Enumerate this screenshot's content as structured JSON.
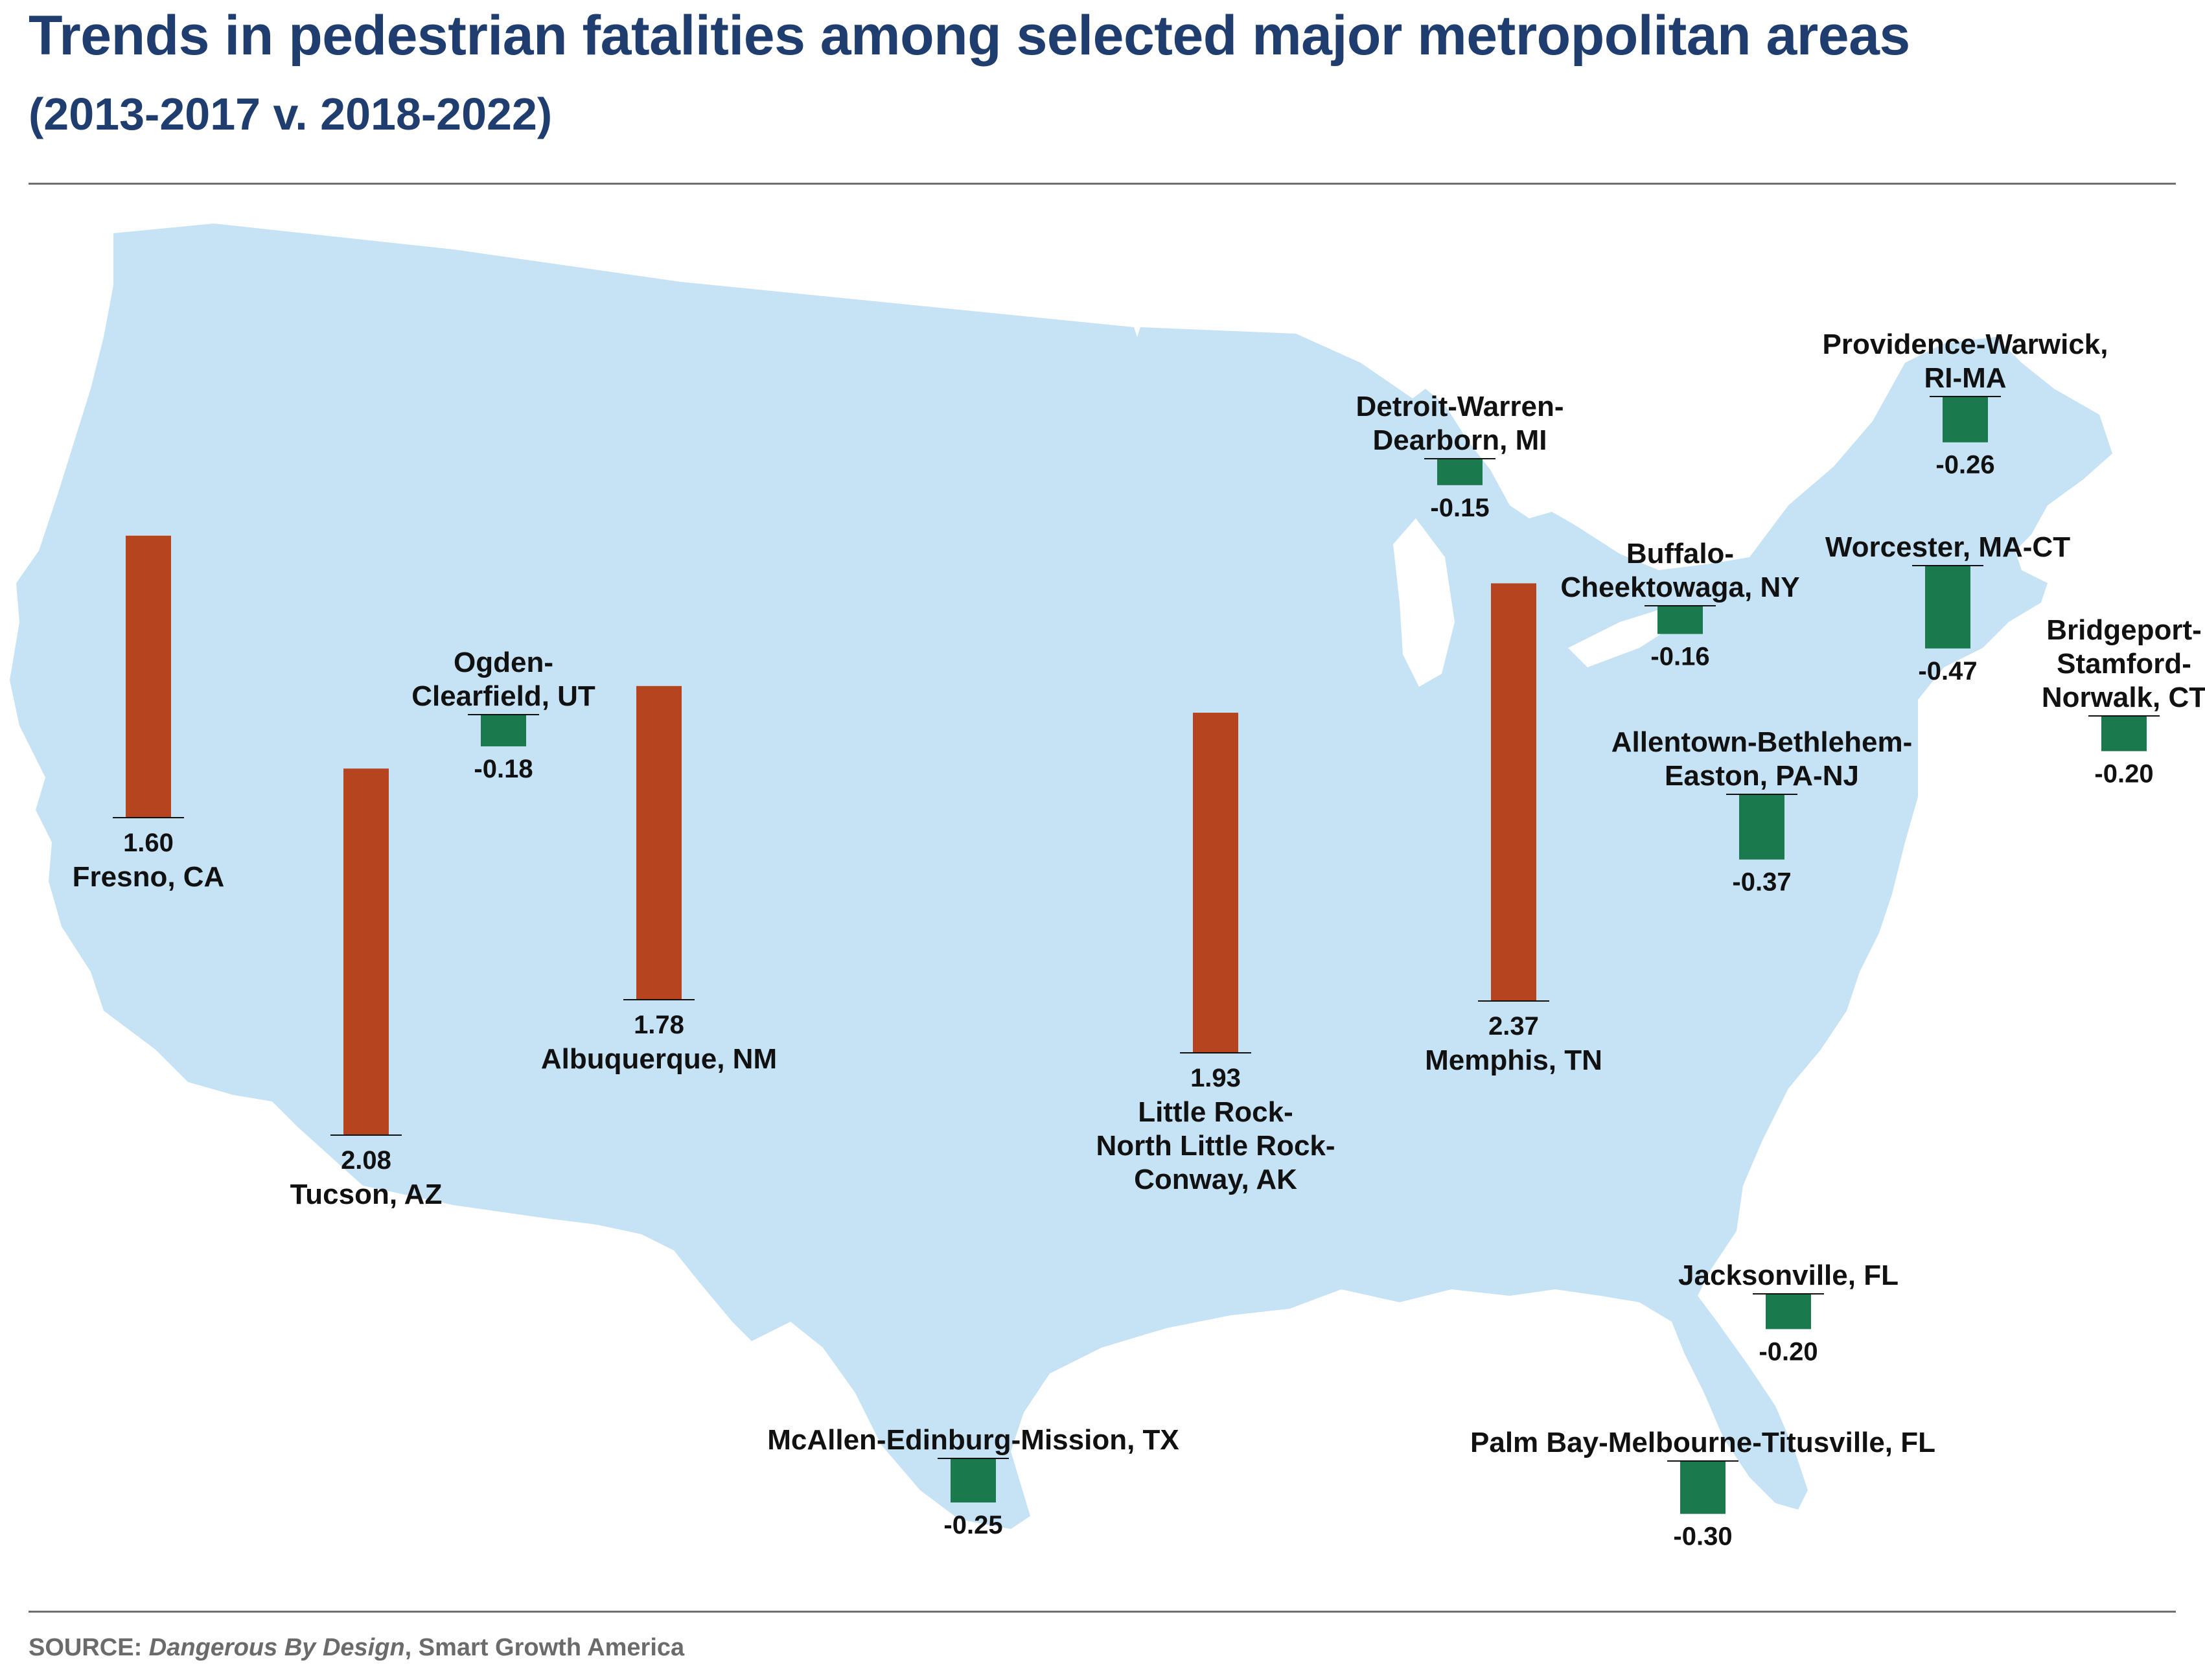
{
  "title": "Trends in pedestrian fatalities among selected major metropolitan areas",
  "subtitle": "(2013-2017 v. 2018-2022)",
  "source": {
    "label": "SOURCE:",
    "work": "Dangerous By Design",
    "org": ", Smart Growth America"
  },
  "colors": {
    "increase": "#b5441f",
    "decrease": "#1b7a4d",
    "map_fill": "#c6e2f5",
    "title": "#1f3d6e",
    "baseline": "#111111"
  },
  "chart_data": {
    "type": "bar",
    "layout": "map-positioned bars",
    "title": "Trends in pedestrian fatalities among selected major metropolitan areas",
    "subtitle": "(2013-2017 v. 2018-2022)",
    "xlabel": "",
    "ylabel": "",
    "grid": false,
    "legend": "none",
    "categories": [
      "Fresno, CA",
      "Tucson, AZ",
      "Ogden-Clearfield, UT",
      "Albuquerque, NM",
      "Little Rock-North Little Rock-Conway, AK",
      "Memphis, TN",
      "Detroit-Warren-Dearborn, MI",
      "Buffalo-Cheektowaga, NY",
      "Allentown-Bethlehem-Easton, PA-NJ",
      "Providence-Warwick, RI-MA",
      "Worcester, MA-CT",
      "Bridgeport-Stamford-Norwalk, CT",
      "Jacksonville, FL",
      "Palm Bay-Melbourne-Titusville, FL",
      "McAllen-Edinburg-Mission, TX"
    ],
    "values": [
      1.6,
      2.08,
      -0.18,
      1.78,
      1.93,
      2.37,
      -0.15,
      -0.16,
      -0.37,
      -0.26,
      -0.47,
      -0.2,
      -0.2,
      -0.3,
      -0.25
    ],
    "items": [
      {
        "name_lines": [
          "Fresno, CA"
        ],
        "value": 1.6,
        "value_label": "1.60"
      },
      {
        "name_lines": [
          "Tucson, AZ"
        ],
        "value": 2.08,
        "value_label": "2.08"
      },
      {
        "name_lines": [
          "Ogden-",
          "Clearfield, UT"
        ],
        "value": -0.18,
        "value_label": "-0.18"
      },
      {
        "name_lines": [
          "Albuquerque, NM"
        ],
        "value": 1.78,
        "value_label": "1.78"
      },
      {
        "name_lines": [
          "Little Rock-",
          "North Little Rock-",
          "Conway, AK"
        ],
        "value": 1.93,
        "value_label": "1.93"
      },
      {
        "name_lines": [
          "Memphis, TN"
        ],
        "value": 2.37,
        "value_label": "2.37"
      },
      {
        "name_lines": [
          "Detroit-Warren-",
          "Dearborn, MI"
        ],
        "value": -0.15,
        "value_label": "-0.15"
      },
      {
        "name_lines": [
          "Buffalo-",
          "Cheektowaga, NY"
        ],
        "value": -0.16,
        "value_label": "-0.16"
      },
      {
        "name_lines": [
          "Allentown-Bethlehem-",
          "Easton, PA-NJ"
        ],
        "value": -0.37,
        "value_label": "-0.37"
      },
      {
        "name_lines": [
          "Providence-Warwick,",
          "RI-MA"
        ],
        "value": -0.26,
        "value_label": "-0.26"
      },
      {
        "name_lines": [
          "Worcester, MA-CT"
        ],
        "value": -0.47,
        "value_label": "-0.47"
      },
      {
        "name_lines": [
          "Bridgeport-",
          "Stamford-",
          "Norwalk, CT"
        ],
        "value": -0.2,
        "value_label": "-0.20"
      },
      {
        "name_lines": [
          "Jacksonville, FL"
        ],
        "value": -0.2,
        "value_label": "-0.20"
      },
      {
        "name_lines": [
          "Palm Bay-Melbourne-Titusville, FL"
        ],
        "value": -0.3,
        "value_label": "-0.30"
      },
      {
        "name_lines": [
          "McAllen-Edinburg-Mission, TX"
        ],
        "value": -0.25,
        "value_label": "-0.25"
      }
    ]
  }
}
